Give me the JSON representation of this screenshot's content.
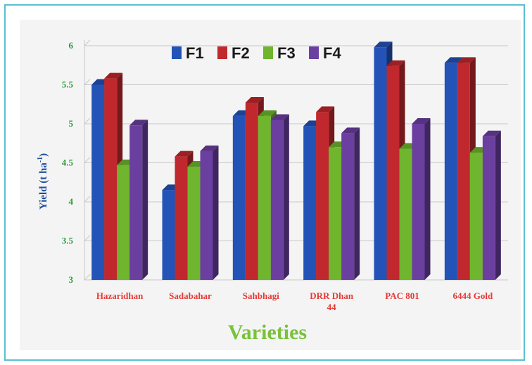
{
  "chart_data": {
    "type": "bar",
    "title": "",
    "xlabel": "Varieties",
    "ylabel": "Yield (t ha",
    "ylabel_superscript": "-1",
    "ylabel_suffix": ")",
    "ylim": [
      3,
      6
    ],
    "yticks": [
      "3",
      "3.5",
      "4",
      "4.5",
      "5",
      "5.5",
      "6"
    ],
    "grid": true,
    "legend_position": "top",
    "categories": [
      [
        "Hazaridhan"
      ],
      [
        "Sadabahar"
      ],
      [
        "Sahbhagi"
      ],
      [
        "DRR Dhan",
        "44"
      ],
      [
        "PAC 801"
      ],
      [
        "6444 Gold"
      ]
    ],
    "series": [
      {
        "name": "F1",
        "color": "#2453b8",
        "values": [
          5.5,
          4.15,
          5.1,
          4.97,
          5.98,
          5.78
        ]
      },
      {
        "name": "F2",
        "color": "#c0282d",
        "values": [
          5.58,
          4.58,
          5.27,
          5.15,
          5.74,
          5.78
        ]
      },
      {
        "name": "F3",
        "color": "#6fb52e",
        "values": [
          4.47,
          4.45,
          5.1,
          4.7,
          4.68,
          4.63
        ]
      },
      {
        "name": "F4",
        "color": "#6b3fa0",
        "values": [
          4.98,
          4.65,
          5.05,
          4.88,
          5.0,
          4.84
        ]
      }
    ]
  }
}
